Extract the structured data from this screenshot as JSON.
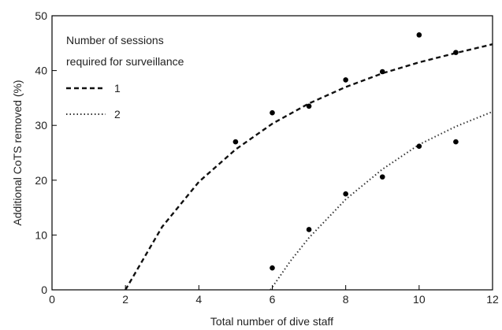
{
  "chart_data": {
    "type": "scatter",
    "xlabel": "Total number of dive staff",
    "ylabel": "Additional CoTS removed (%)",
    "xlim": [
      0,
      12
    ],
    "ylim": [
      0,
      50
    ],
    "xticks": [
      "0",
      "2",
      "4",
      "6",
      "8",
      "10",
      "12"
    ],
    "yticks": [
      "0",
      "10",
      "20",
      "30",
      "40",
      "50"
    ],
    "grid": false,
    "legend": {
      "title_line1": "Number of sessions",
      "title_line2": "required for surveillance",
      "placement": "top-left"
    },
    "series": [
      {
        "name": "1",
        "line_style": "dashed",
        "points": [
          [
            5,
            27
          ],
          [
            6,
            32.3
          ],
          [
            7,
            33.5
          ],
          [
            8,
            38.3
          ],
          [
            9,
            39.8
          ],
          [
            10,
            46.5
          ],
          [
            11,
            43.3
          ]
        ],
        "curve": [
          [
            2,
            0
          ],
          [
            3,
            11.5
          ],
          [
            4,
            19.7
          ],
          [
            5,
            25.6
          ],
          [
            6,
            30.3
          ],
          [
            7,
            34
          ],
          [
            8,
            37
          ],
          [
            9,
            39.5
          ],
          [
            10,
            41.5
          ],
          [
            11,
            43.2
          ],
          [
            12,
            44.8
          ]
        ]
      },
      {
        "name": "2",
        "line_style": "dotted",
        "points": [
          [
            6,
            4
          ],
          [
            7,
            11
          ],
          [
            8,
            17.5
          ],
          [
            9,
            20.6
          ],
          [
            10,
            26.2
          ],
          [
            11,
            27
          ]
        ],
        "curve": [
          [
            5.95,
            0
          ],
          [
            6.5,
            5.3
          ],
          [
            7,
            9.5
          ],
          [
            8,
            16.5
          ],
          [
            9,
            22
          ],
          [
            10,
            26.5
          ],
          [
            11,
            29.8
          ],
          [
            12,
            32.5
          ]
        ]
      }
    ]
  }
}
